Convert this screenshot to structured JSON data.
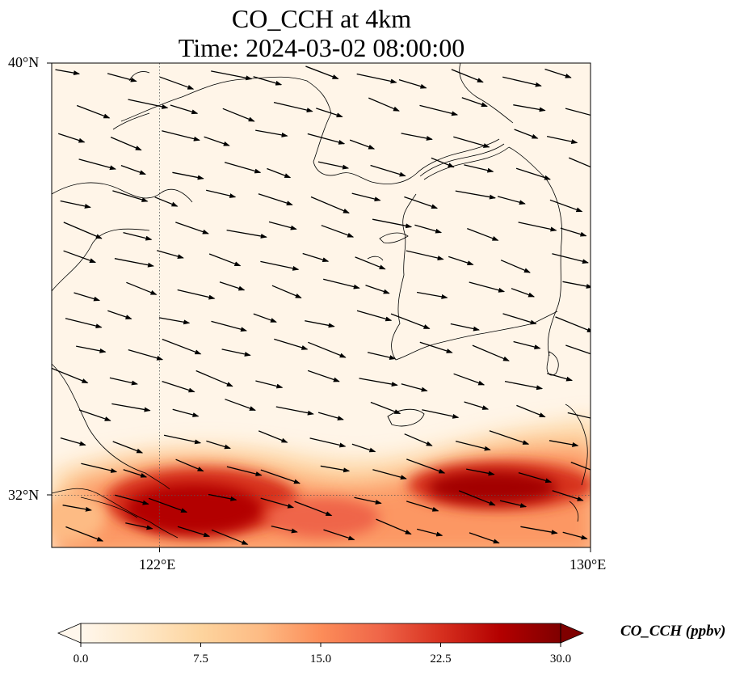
{
  "title": {
    "line1": "CO_CCH at 4km",
    "line2": "Time: 2024-03-02 08:00:00"
  },
  "axes": {
    "lat_labels": [
      "40°N",
      "32°N"
    ],
    "lon_labels": [
      "122°E",
      "130°E"
    ],
    "lon_range": [
      120,
      130
    ],
    "lat_range": [
      31,
      40
    ]
  },
  "colorbar": {
    "label": "CO_CCH (ppbv)",
    "ticks": [
      "0.0",
      "7.5",
      "15.0",
      "22.5",
      "30.0"
    ],
    "min": 0,
    "max": 30,
    "colormap": [
      "#fff7ec",
      "#fee8c8",
      "#fdd49e",
      "#fdbb84",
      "#fc8d59",
      "#ef6548",
      "#d7301f",
      "#b30000",
      "#7f0000"
    ],
    "extend": "both"
  },
  "map": {
    "background_color": "#fff5e8",
    "plume_color": "#b30000",
    "coastline_color": "#000000",
    "gridline_style": "dotted"
  }
}
